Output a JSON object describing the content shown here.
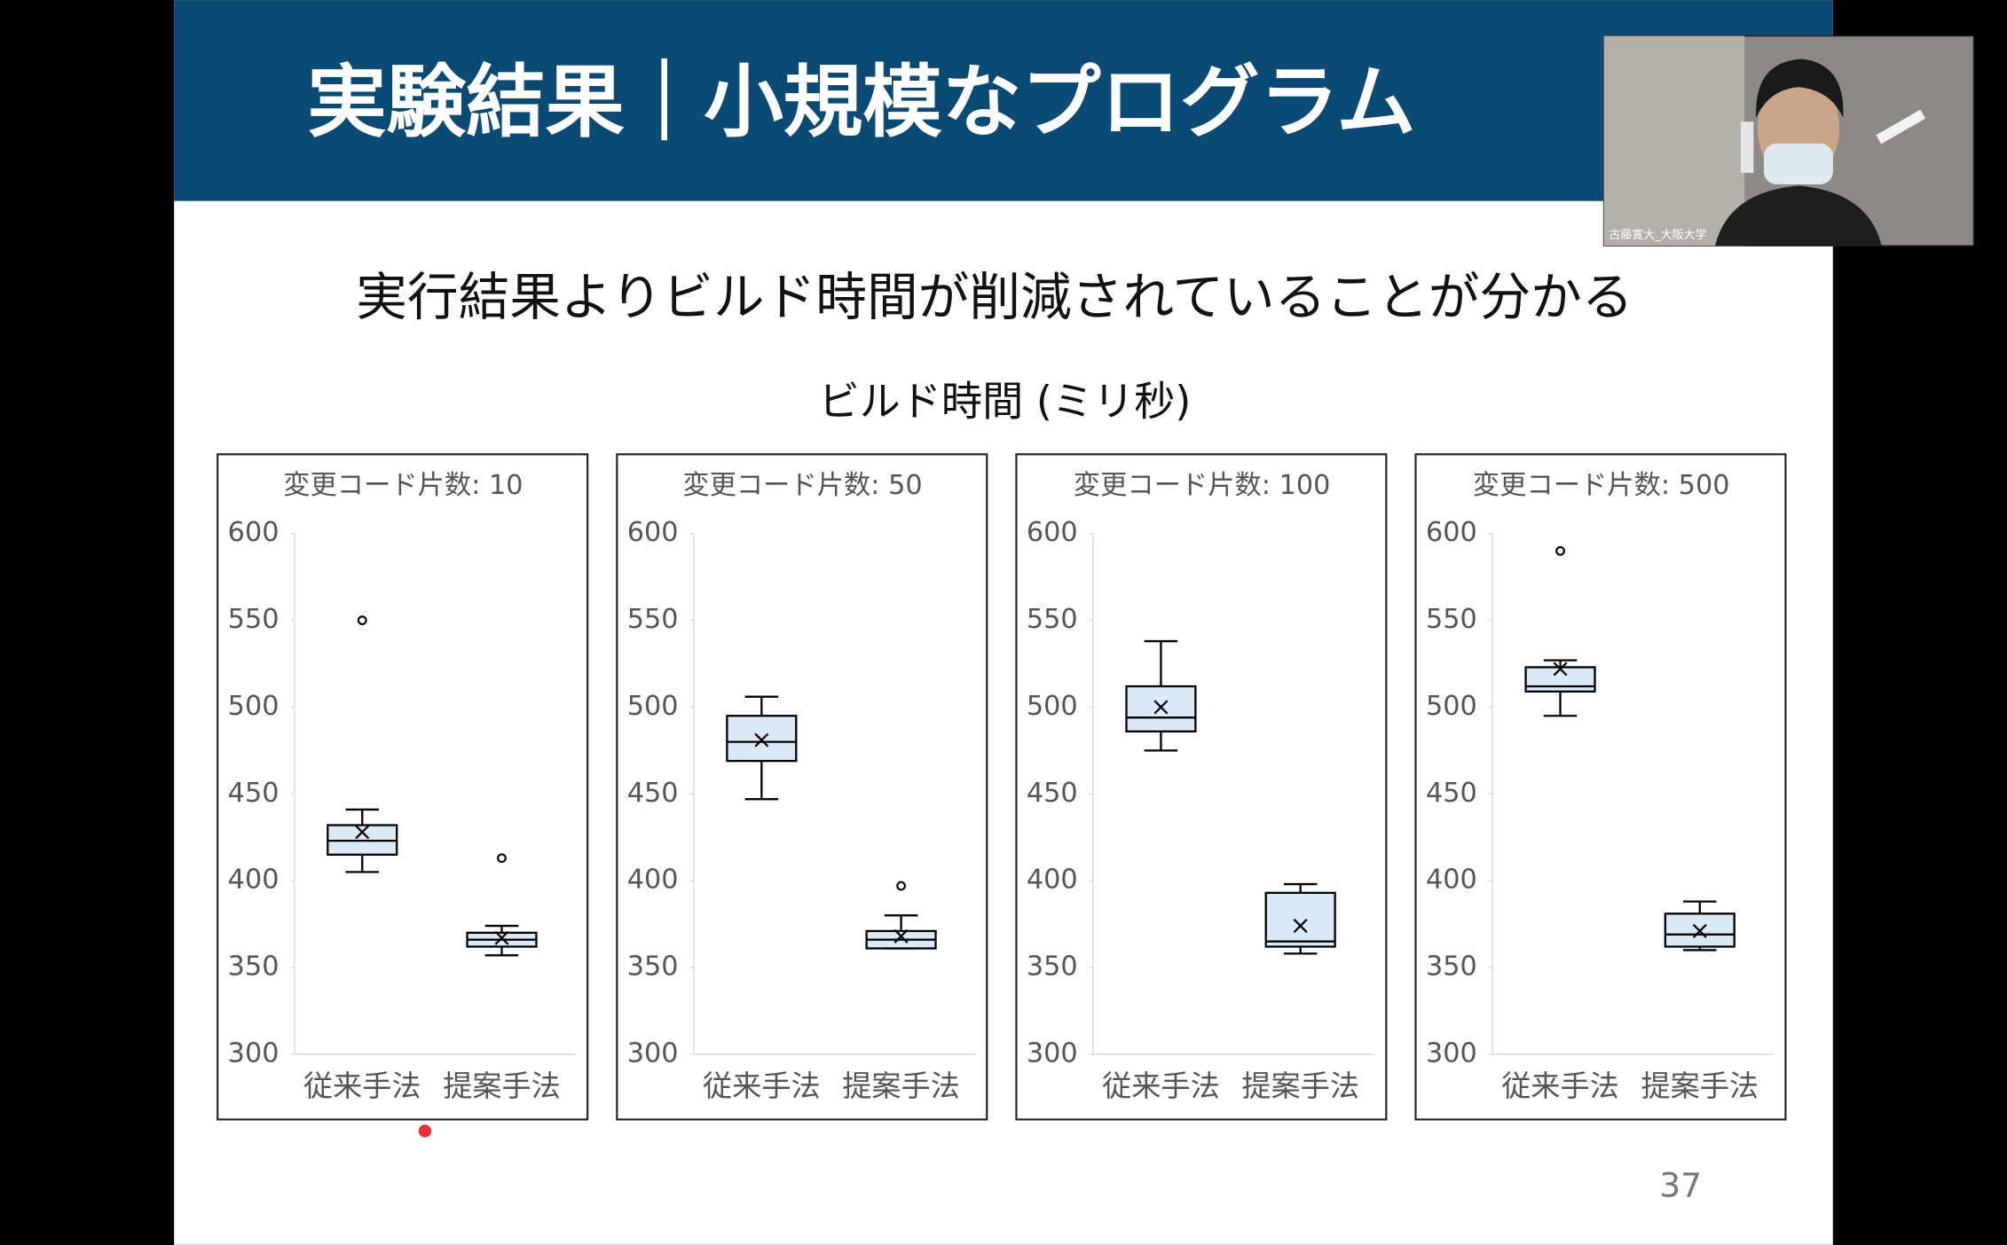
{
  "slide": {
    "title": "実験結果｜小規模なプログラム",
    "subtitle": "実行結果よりビルド時間が削減されていることが分かる",
    "chart_heading": "ビルド時間 (ミリ秒)",
    "page_number": "37"
  },
  "video": {
    "participant_name": "古藤寛大_大阪大学"
  },
  "chart_data": [
    {
      "type": "box",
      "title": "変更コード片数: 10",
      "categories": [
        "従来手法",
        "提案手法"
      ],
      "color": "#dbe9f6",
      "min": [
        405,
        357
      ],
      "q1": [
        415,
        362
      ],
      "median": [
        423,
        366
      ],
      "q3": [
        432,
        370
      ],
      "max": [
        441,
        374
      ],
      "mean": [
        428,
        367
      ],
      "outliers": [
        [
          550
        ],
        [
          413
        ]
      ],
      "ylim": [
        300,
        600
      ],
      "yticks": [
        300,
        350,
        400,
        450,
        500,
        550,
        600
      ]
    },
    {
      "type": "box",
      "title": "変更コード片数: 50",
      "categories": [
        "従来手法",
        "提案手法"
      ],
      "color": "#dbe9f6",
      "min": [
        447,
        361
      ],
      "q1": [
        469,
        361
      ],
      "median": [
        480,
        366
      ],
      "q3": [
        495,
        371
      ],
      "max": [
        506,
        380
      ],
      "mean": [
        481,
        368
      ],
      "outliers": [
        [],
        [
          397
        ]
      ],
      "ylim": [
        300,
        600
      ],
      "yticks": [
        300,
        350,
        400,
        450,
        500,
        550,
        600
      ]
    },
    {
      "type": "box",
      "title": "変更コード片数: 100",
      "categories": [
        "従来手法",
        "提案手法"
      ],
      "color": "#dbe9f6",
      "min": [
        475,
        358
      ],
      "q1": [
        486,
        362
      ],
      "median": [
        494,
        365
      ],
      "q3": [
        512,
        393
      ],
      "max": [
        538,
        398
      ],
      "mean": [
        500,
        374
      ],
      "outliers": [
        [],
        []
      ],
      "ylim": [
        300,
        600
      ],
      "yticks": [
        300,
        350,
        400,
        450,
        500,
        550,
        600
      ]
    },
    {
      "type": "box",
      "title": "変更コード片数: 500",
      "categories": [
        "従来手法",
        "提案手法"
      ],
      "color": "#dbe9f6",
      "min": [
        495,
        360
      ],
      "q1": [
        509,
        362
      ],
      "median": [
        512,
        369
      ],
      "q3": [
        523,
        381
      ],
      "max": [
        527,
        388
      ],
      "mean": [
        522,
        371
      ],
      "outliers": [
        [
          590
        ],
        []
      ],
      "ylim": [
        300,
        600
      ],
      "yticks": [
        300,
        350,
        400,
        450,
        500,
        550,
        600
      ]
    }
  ]
}
